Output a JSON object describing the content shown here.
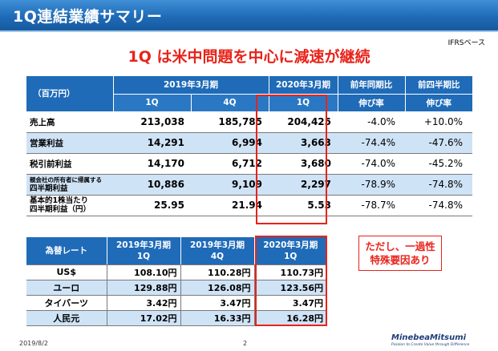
{
  "header": {
    "title": "1Q連結業績サマリー",
    "basis": "IFRSベース"
  },
  "headline": "1Q は米中問題を中心に減速が継続",
  "main_table": {
    "unit": "（百万円）",
    "period_2019": "2019年3月期",
    "period_2020": "2020年3月期",
    "yoy": "前年同期比",
    "qoq": "前四半期比",
    "growth": "伸び率",
    "q1": "1Q",
    "q4": "4Q",
    "rows": [
      {
        "label": "売上高",
        "v1": "213,038",
        "v2": "185,785",
        "v3": "204,425",
        "yoy": "-4.0%",
        "qoq": "+10.0%"
      },
      {
        "label": "営業利益",
        "v1": "14,291",
        "v2": "6,994",
        "v3": "3,663",
        "yoy": "-74.4%",
        "qoq": "-47.6%"
      },
      {
        "label": "税引前利益",
        "v1": "14,170",
        "v2": "6,712",
        "v3": "3,680",
        "yoy": "-74.0%",
        "qoq": "-45.2%"
      },
      {
        "label_l1": "親会社の所有者に帰属する",
        "label_l2": "四半期利益",
        "v1": "10,886",
        "v2": "9,109",
        "v3": "2,297",
        "yoy": "-78.9%",
        "qoq": "-74.8%"
      },
      {
        "label_l1": "基本的1株当たり",
        "label_l2": "四半期利益（円）",
        "v1": "25.95",
        "v2": "21.94",
        "v3": "5.53",
        "yoy": "-78.7%",
        "qoq": "-74.8%"
      }
    ]
  },
  "fx_table": {
    "label": "為替レート",
    "col1_l1": "2019年3月期",
    "col1_l2": "1Q",
    "col2_l1": "2019年3月期",
    "col2_l2": "4Q",
    "col3_l1": "2020年3月期",
    "col3_l2": "1Q",
    "rows": [
      {
        "label": "US$",
        "v1": "108.10円",
        "v2": "110.28円",
        "v3": "110.73円"
      },
      {
        "label": "ユーロ",
        "v1": "129.88円",
        "v2": "126.08円",
        "v3": "123.56円"
      },
      {
        "label": "タイバーツ",
        "v1": "3.42円",
        "v2": "3.47円",
        "v3": "3.47円"
      },
      {
        "label": "人民元",
        "v1": "17.02円",
        "v2": "16.33円",
        "v3": "16.28円"
      }
    ]
  },
  "note": {
    "line1": "ただし、一過性",
    "line2": "特殊要因あり"
  },
  "footer": {
    "date": "2019/8/2",
    "page": "2",
    "logo_name": "MinebeaMitsumi",
    "logo_tagline": "Passion to Create Value through Difference"
  },
  "colors": {
    "header_blue": "#1f6bb8",
    "row_shade": "#cfe3f6",
    "accent_red": "#e8231a"
  }
}
